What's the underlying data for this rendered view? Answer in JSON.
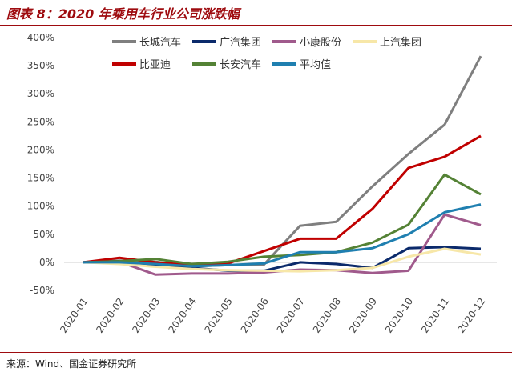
{
  "title": "图表 8：2020 年乘用车行业公司涨跌幅",
  "source": "来源：Wind、国金证券研究所",
  "chart_data": {
    "type": "line",
    "title": "",
    "xlabel": "",
    "ylabel": "",
    "x": [
      "2020-01",
      "2020-02",
      "2020-03",
      "2020-04",
      "2020-05",
      "2020-06",
      "2020-07",
      "2020-08",
      "2020-09",
      "2020-10",
      "2020-11",
      "2020-12"
    ],
    "yticks": [
      "400%",
      "350%",
      "300%",
      "250%",
      "200%",
      "150%",
      "100%",
      "50%",
      "0%",
      "-50%"
    ],
    "ylim": [
      -50,
      400
    ],
    "grid": false,
    "legend_position": "top",
    "series": [
      {
        "name": "长城汽车",
        "color": "#7f7f7f",
        "values": [
          0,
          3,
          1,
          -7,
          -5,
          -4,
          65,
          72,
          135,
          193,
          245,
          367
        ]
      },
      {
        "name": "广汽集团",
        "color": "#0b2a6b",
        "values": [
          0,
          2,
          -5,
          -10,
          -15,
          -15,
          0,
          -3,
          -10,
          25,
          27,
          24
        ]
      },
      {
        "name": "小康股份",
        "color": "#a05a8c",
        "values": [
          0,
          1,
          -22,
          -20,
          -20,
          -18,
          -13,
          -14,
          -19,
          -15,
          85,
          66
        ]
      },
      {
        "name": "上汽集团",
        "color": "#f7e7a8",
        "values": [
          0,
          -3,
          -8,
          -12,
          -14,
          -15,
          -16,
          -14,
          -10,
          10,
          24,
          14
        ]
      },
      {
        "name": "比亚迪",
        "color": "#c00000",
        "values": [
          0,
          8,
          0,
          -5,
          -2,
          20,
          42,
          42,
          95,
          168,
          188,
          225
        ]
      },
      {
        "name": "长安汽车",
        "color": "#548235",
        "values": [
          0,
          2,
          6,
          -3,
          1,
          10,
          13,
          18,
          35,
          67,
          156,
          121
        ]
      },
      {
        "name": "平均值",
        "color": "#1f7fb0",
        "values": [
          0,
          0,
          -3,
          -7,
          -5,
          -2,
          18,
          18,
          25,
          50,
          89,
          103
        ]
      }
    ]
  }
}
